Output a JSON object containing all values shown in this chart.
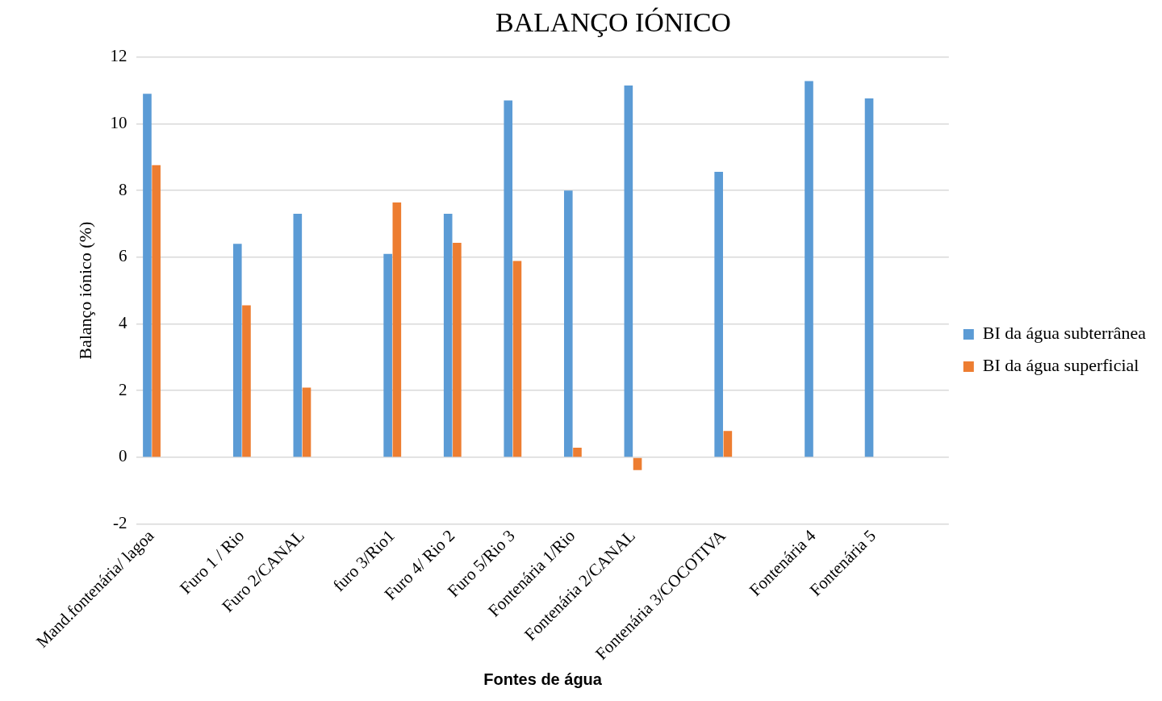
{
  "chart_data": {
    "type": "bar",
    "title": "BALANÇO IÓNICO",
    "xlabel": "Fontes de água",
    "ylabel": "Balanço iónico (%)",
    "categories": [
      "Mand.fontenária/ lagoa",
      null,
      null,
      "Furo 1 / Rio",
      null,
      "Furo 2/CANAL",
      null,
      null,
      "furo 3/Rio1",
      null,
      "Furo 4/ Rio 2",
      null,
      "Furo 5/Rio 3",
      null,
      "Fontenária 1/Rio",
      null,
      "Fontenária 2/CANAL",
      null,
      null,
      "Fontenária 3/COCOTIVA",
      null,
      null,
      "Fontenária 4",
      null,
      "Fontenária 5",
      null,
      null
    ],
    "series": [
      {
        "name": "BI da água subterrânea",
        "color": "#5b9bd5",
        "values": [
          10.9,
          null,
          null,
          6.4,
          null,
          7.3,
          null,
          null,
          6.1,
          null,
          7.3,
          null,
          10.7,
          null,
          8.0,
          null,
          11.15,
          null,
          null,
          8.56,
          null,
          null,
          11.28,
          null,
          10.76,
          null,
          null
        ]
      },
      {
        "name": "BI da água superficial",
        "color": "#ed7d31",
        "values": [
          8.76,
          null,
          null,
          4.56,
          null,
          2.09,
          null,
          null,
          7.64,
          null,
          6.43,
          null,
          5.89,
          null,
          0.29,
          null,
          -0.38,
          null,
          null,
          0.79,
          null,
          null,
          null,
          null,
          null,
          null,
          null
        ]
      }
    ],
    "ylim": [
      -2,
      12
    ],
    "yticks": [
      -2,
      0,
      2,
      4,
      6,
      8,
      10,
      12
    ],
    "grid": "y",
    "legend": "right"
  }
}
